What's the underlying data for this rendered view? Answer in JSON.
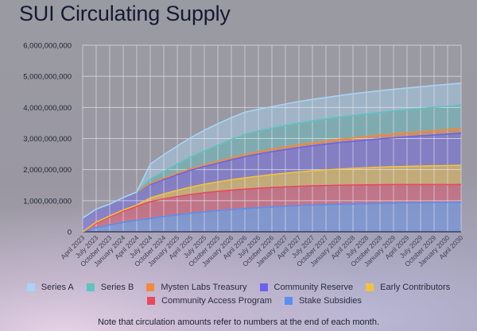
{
  "title": "SUI Circulating Supply",
  "note": "Note that circulation amounts refer to numbers at the end of each month.",
  "chart_data": {
    "type": "area",
    "stacked": true,
    "title": "SUI Circulating Supply",
    "xlabel": "",
    "ylabel": "",
    "ylim": [
      0,
      6000000000
    ],
    "yticks": [
      0,
      1000000000,
      2000000000,
      3000000000,
      4000000000,
      5000000000,
      6000000000
    ],
    "ytick_labels": [
      "0",
      "1,000,000,000",
      "2,000,000,000",
      "3,000,000,000",
      "4,000,000,000",
      "5,000,000,000",
      "6,000,000,000"
    ],
    "grid": true,
    "legend_position": "bottom",
    "categories": [
      "April 2023",
      "July 2023",
      "October 2023",
      "January 2024",
      "April 2024",
      "July 2024",
      "October 2024",
      "January 2025",
      "April 2025",
      "July 2025",
      "October 2025",
      "January 2026",
      "April 2026",
      "July 2026",
      "October 2026",
      "January 2027",
      "April 2027",
      "July 2027",
      "October 2027",
      "January 2028",
      "April 2028",
      "July 2028",
      "October 2028",
      "January 2029",
      "April 2029",
      "July 2029",
      "October 2029",
      "January 2030",
      "April 2030"
    ],
    "series": [
      {
        "name": "Stake Subsidies",
        "color": "#5b8ef0",
        "values": [
          0,
          130000000,
          220000000,
          300000000,
          370000000,
          430000000,
          490000000,
          545000000,
          595000000,
          640000000,
          680000000,
          715000000,
          745000000,
          775000000,
          800000000,
          820000000,
          840000000,
          855000000,
          870000000,
          885000000,
          895000000,
          905000000,
          915000000,
          925000000,
          930000000,
          935000000,
          940000000,
          945000000,
          950000000
        ]
      },
      {
        "name": "Community Access Program",
        "color": "#e8485e",
        "values": [
          0,
          150000000,
          260000000,
          360000000,
          450000000,
          540000000,
          570000000,
          590000000,
          605000000,
          615000000,
          620000000,
          625000000,
          625000000,
          625000000,
          625000000,
          625000000,
          625000000,
          625000000,
          620000000,
          615000000,
          610000000,
          605000000,
          600000000,
          595000000,
          590000000,
          585000000,
          580000000,
          575000000,
          570000000
        ]
      },
      {
        "name": "Early Contributors",
        "color": "#f2c140",
        "values": [
          0,
          30000000,
          30000000,
          40000000,
          40000000,
          120000000,
          160000000,
          200000000,
          240000000,
          275000000,
          305000000,
          335000000,
          365000000,
          390000000,
          415000000,
          440000000,
          460000000,
          480000000,
          500000000,
          520000000,
          535000000,
          550000000,
          565000000,
          575000000,
          585000000,
          595000000,
          605000000,
          612000000,
          620000000
        ]
      },
      {
        "name": "Community Reserve",
        "color": "#6b62e8",
        "values": [
          440000000,
          420000000,
          380000000,
          400000000,
          420000000,
          430000000,
          460000000,
          500000000,
          540000000,
          570000000,
          600000000,
          640000000,
          680000000,
          710000000,
          735000000,
          760000000,
          785000000,
          810000000,
          830000000,
          850000000,
          870000000,
          890000000,
          910000000,
          930000000,
          950000000,
          970000000,
          990000000,
          1010000000,
          1030000000
        ]
      },
      {
        "name": "Mysten Labs Treasury",
        "color": "#f08a3c",
        "values": [
          0,
          0,
          0,
          0,
          0,
          30000000,
          40000000,
          45000000,
          50000000,
          55000000,
          60000000,
          65000000,
          70000000,
          75000000,
          80000000,
          85000000,
          90000000,
          95000000,
          100000000,
          105000000,
          110000000,
          115000000,
          120000000,
          125000000,
          130000000,
          135000000,
          140000000,
          145000000,
          150000000
        ]
      },
      {
        "name": "Series B",
        "color": "#5fc3c0",
        "values": [
          0,
          0,
          0,
          0,
          0,
          140000000,
          220000000,
          300000000,
          380000000,
          450000000,
          520000000,
          590000000,
          650000000,
          670000000,
          680000000,
          690000000,
          700000000,
          705000000,
          710000000,
          715000000,
          720000000,
          725000000,
          730000000,
          735000000,
          740000000,
          745000000,
          750000000,
          755000000,
          760000000
        ]
      },
      {
        "name": "Series A",
        "color": "#a8d4f5",
        "values": [
          0,
          0,
          0,
          0,
          0,
          490000000,
          540000000,
          580000000,
          620000000,
          660000000,
          690000000,
          700000000,
          715000000,
          695000000,
          690000000,
          690000000,
          690000000,
          690000000,
          690000000,
          690000000,
          700000000,
          700000000,
          700000000,
          700000000,
          700000000,
          700000000,
          700000000,
          700000000,
          700000000
        ]
      }
    ],
    "legend": [
      [
        "Series A",
        "Series B",
        "Mysten Labs Treasury",
        "Community Reserve",
        "Early Contributors"
      ],
      [
        "Community Access Program",
        "Stake Subsidies"
      ]
    ]
  }
}
